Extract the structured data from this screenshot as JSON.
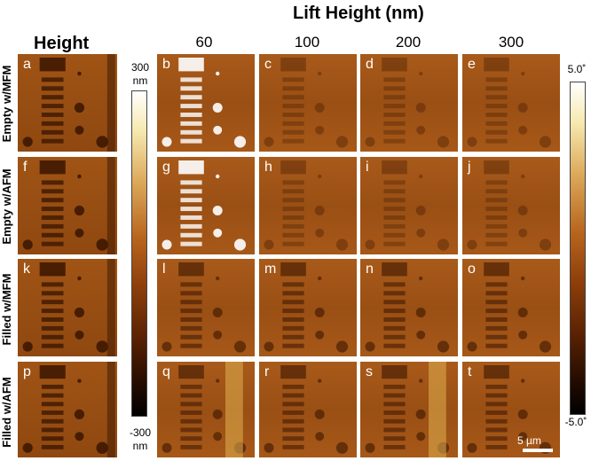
{
  "header": {
    "lift_height_title": "Lift Height (nm)",
    "height_title": "Height",
    "columns": [
      "60",
      "100",
      "200",
      "300"
    ]
  },
  "rows": [
    {
      "label": "Empty w/MFM"
    },
    {
      "label": "Empty w/AFM"
    },
    {
      "label": "Filled w/MFM"
    },
    {
      "label": "Filled w/AFM"
    }
  ],
  "panel_letters": [
    [
      "a",
      "b",
      "c",
      "d",
      "e"
    ],
    [
      "f",
      "g",
      "h",
      "i",
      "j"
    ],
    [
      "k",
      "l",
      "m",
      "n",
      "o"
    ],
    [
      "p",
      "q",
      "r",
      "s",
      "t"
    ]
  ],
  "left_colorbar": {
    "top": "300",
    "top_unit": "nm",
    "bottom": "-300",
    "bottom_unit": "nm"
  },
  "right_colorbar": {
    "top": "5.0˚",
    "bottom": "-5.0˚"
  },
  "scale_bar": {
    "label": "5 µm"
  },
  "colors": {
    "panel_brown": "#9a4f14",
    "dark_feature": "#3a1500",
    "bright_feature": "#ffffff"
  }
}
